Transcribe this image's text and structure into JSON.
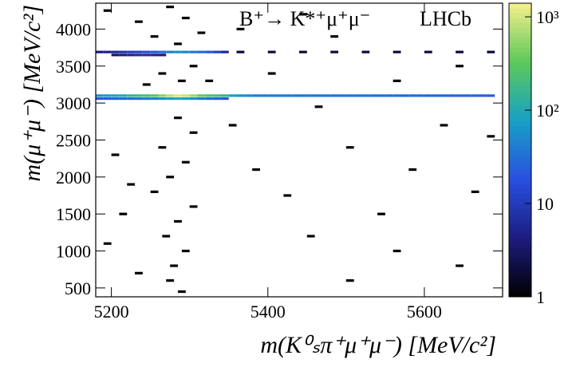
{
  "chart_data": {
    "type": "hist2d",
    "annotations": [
      "B⁺→ K*⁺μ⁺μ⁻",
      "LHCb"
    ],
    "xlabel": "m(K⁰ₛπ⁺μ⁺μ⁻) [MeV/c²]",
    "ylabel": "m(μ⁺μ⁻) [MeV/c²]",
    "xlim": [
      5180,
      5700
    ],
    "ylim": [
      380,
      4350
    ],
    "xticks": [
      5200,
      5400,
      5600
    ],
    "yticks": [
      500,
      1000,
      1500,
      2000,
      2500,
      3000,
      3500,
      4000
    ],
    "zlim": [
      1,
      1400
    ],
    "zticks": [
      1,
      10,
      {
        "value": 100,
        "label": "10²"
      },
      {
        "value": 1000,
        "label": "10³"
      }
    ],
    "zscale": "log",
    "colorscale": [
      "#000000",
      "#1c1c80",
      "#2a4fe0",
      "#17a0c4",
      "#5cc85a",
      "#f5f08c"
    ],
    "x": [
      5180,
      5190,
      5200,
      5210,
      5220,
      5230,
      5240,
      5250,
      5260,
      5270,
      5280,
      5290,
      5300,
      5310,
      5320,
      5330,
      5340,
      5350,
      5360,
      5370,
      5380,
      5390,
      5400,
      5410,
      5420,
      5430,
      5440,
      5450,
      5460,
      5470,
      5480,
      5490,
      5500,
      5510,
      5520,
      5530,
      5540,
      5550,
      5560,
      5570,
      5580,
      5590,
      5600,
      5610,
      5620,
      5630,
      5640,
      5650,
      5660,
      5670,
      5680,
      5180,
      5190,
      5200,
      5210,
      5220,
      5230,
      5240,
      5250,
      5260,
      5270,
      5280,
      5290,
      5300,
      5310,
      5320,
      5330,
      5340,
      5180,
      5190,
      5200,
      5210,
      5220,
      5230,
      5240,
      5250,
      5260,
      5270,
      5280,
      5290,
      5300,
      5310,
      5320,
      5330,
      5340,
      5200,
      5210,
      5220,
      5230,
      5240,
      5250,
      5260,
      5360,
      5400,
      5440,
      5480,
      5520,
      5560,
      5600,
      5640,
      5680,
      5190,
      5230,
      5270,
      5290,
      5310,
      5250,
      5280,
      5300,
      5260,
      5285,
      5240,
      5320,
      5280,
      5300,
      5260,
      5290,
      5270,
      5250,
      5300,
      5280,
      5265,
      5290,
      5275,
      5270,
      5285,
      5200,
      5220,
      5210,
      5190,
      5230,
      5350,
      5380,
      5420,
      5460,
      5500,
      5540,
      5580,
      5620,
      5660,
      5450,
      5500,
      5560,
      5640,
      5400,
      5480,
      5560,
      5640,
      5680,
      5360,
      5440
    ],
    "y": [
      3100,
      3100,
      3100,
      3100,
      3100,
      3100,
      3100,
      3100,
      3100,
      3100,
      3100,
      3100,
      3100,
      3100,
      3100,
      3100,
      3100,
      3100,
      3100,
      3100,
      3100,
      3100,
      3100,
      3100,
      3100,
      3100,
      3100,
      3100,
      3100,
      3100,
      3100,
      3100,
      3100,
      3100,
      3100,
      3100,
      3100,
      3100,
      3100,
      3100,
      3100,
      3100,
      3100,
      3100,
      3100,
      3100,
      3100,
      3100,
      3100,
      3100,
      3100,
      3060,
      3060,
      3060,
      3060,
      3060,
      3060,
      3060,
      3060,
      3060,
      3060,
      3060,
      3060,
      3060,
      3060,
      3060,
      3060,
      3060,
      3690,
      3690,
      3690,
      3690,
      3690,
      3690,
      3690,
      3690,
      3690,
      3690,
      3690,
      3690,
      3690,
      3690,
      3690,
      3690,
      3690,
      3650,
      3650,
      3650,
      3650,
      3650,
      3650,
      3650,
      3690,
      3690,
      3690,
      3690,
      3690,
      3690,
      3690,
      3690,
      3690,
      4250,
      4100,
      4300,
      4150,
      3950,
      3900,
      3800,
      3500,
      3400,
      3300,
      3250,
      3300,
      2800,
      2600,
      2400,
      2200,
      2000,
      1800,
      1600,
      1400,
      1200,
      1000,
      800,
      600,
      450,
      2300,
      1900,
      1500,
      1100,
      700,
      2700,
      2100,
      1750,
      2950,
      2400,
      1500,
      2100,
      2700,
      1800,
      1200,
      600,
      1000,
      800,
      3400,
      3900,
      3300,
      3500,
      2550,
      4000,
      4200
    ],
    "values": [
      60,
      70,
      80,
      100,
      150,
      180,
      220,
      300,
      500,
      800,
      1100,
      900,
      600,
      350,
      250,
      200,
      150,
      80,
      60,
      50,
      40,
      40,
      38,
      38,
      36,
      36,
      35,
      35,
      34,
      34,
      33,
      33,
      32,
      32,
      31,
      31,
      30,
      30,
      30,
      30,
      29,
      29,
      28,
      28,
      28,
      27,
      27,
      26,
      26,
      25,
      25,
      20,
      22,
      25,
      28,
      30,
      35,
      40,
      45,
      60,
      80,
      100,
      80,
      60,
      40,
      30,
      25,
      20,
      4,
      5,
      6,
      8,
      10,
      12,
      15,
      20,
      30,
      45,
      60,
      50,
      40,
      30,
      20,
      12,
      6,
      3,
      4,
      5,
      6,
      6,
      5,
      4,
      2,
      2,
      2,
      2,
      2,
      2,
      2,
      2,
      2,
      1,
      1,
      1,
      1,
      1,
      1,
      1,
      1,
      1,
      1,
      1,
      1,
      1,
      1,
      1,
      1,
      1,
      1,
      1,
      1,
      1,
      1,
      1,
      1,
      1,
      1,
      1,
      1,
      1,
      1,
      1,
      1,
      1,
      1,
      1,
      1,
      1,
      1,
      1,
      1,
      1,
      1,
      1,
      1,
      1,
      1,
      1,
      1,
      1,
      1
    ]
  }
}
